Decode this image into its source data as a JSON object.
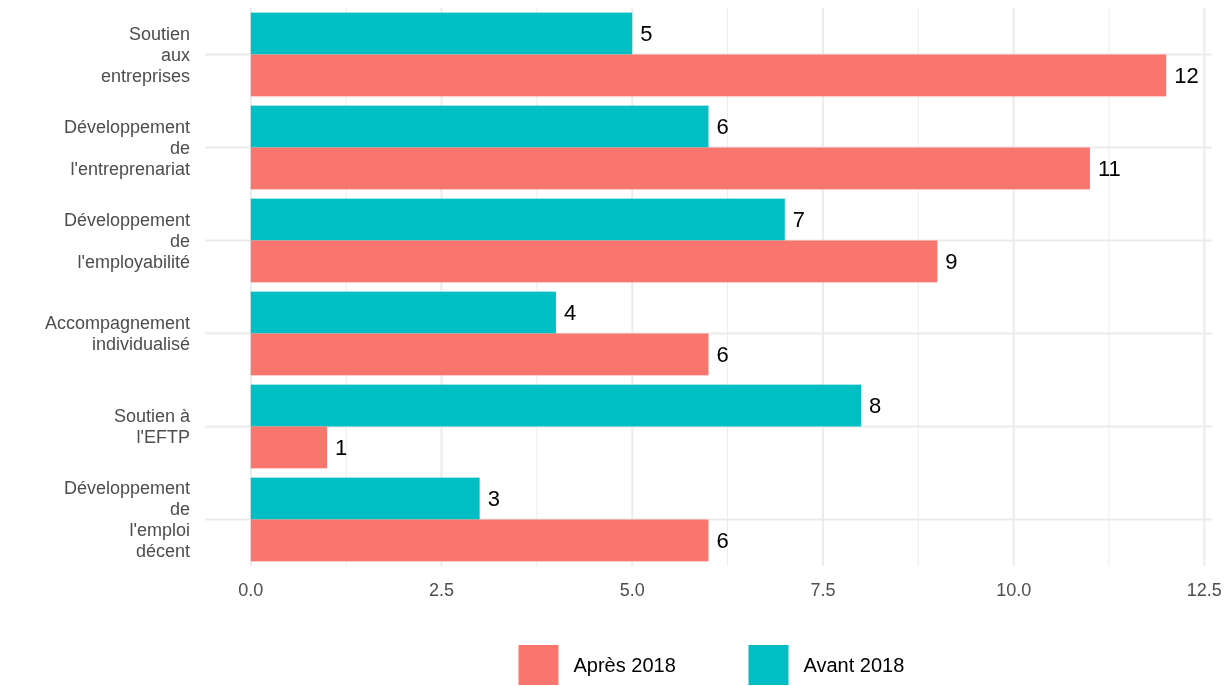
{
  "chart_data": {
    "type": "bar",
    "orientation": "horizontal",
    "categories": [
      "Soutien\naux\nentreprises",
      "Développement\nde\nl'entreprenariat",
      "Développement\nde\nl'employabilité",
      "Accompagnement\nindividualisé",
      "Soutien à\nl'EFTP",
      "Développement\nde\nl'emploi\ndécent"
    ],
    "series": [
      {
        "name": "Avant 2018",
        "color": "#00bfc4",
        "values": [
          5,
          6,
          7,
          4,
          8,
          3
        ]
      },
      {
        "name": "Après 2018",
        "color": "#f8766d",
        "values": [
          12,
          11,
          9,
          6,
          1,
          6
        ]
      }
    ],
    "xlim": [
      -0.6,
      12.6
    ],
    "xticks": [
      {
        "value": 0,
        "label": "0.0"
      },
      {
        "value": 1.25,
        "label": null
      },
      {
        "value": 2.5,
        "label": "2.5"
      },
      {
        "value": 3.75,
        "label": null
      },
      {
        "value": 5,
        "label": "5.0"
      },
      {
        "value": 6.25,
        "label": null
      },
      {
        "value": 7.5,
        "label": "7.5"
      },
      {
        "value": 8.75,
        "label": null
      },
      {
        "value": 10,
        "label": "10.0"
      },
      {
        "value": 11.25,
        "label": null
      },
      {
        "value": 12.5,
        "label": "12.5"
      }
    ],
    "grid": true,
    "legend": "bottom",
    "data_labels": true
  }
}
